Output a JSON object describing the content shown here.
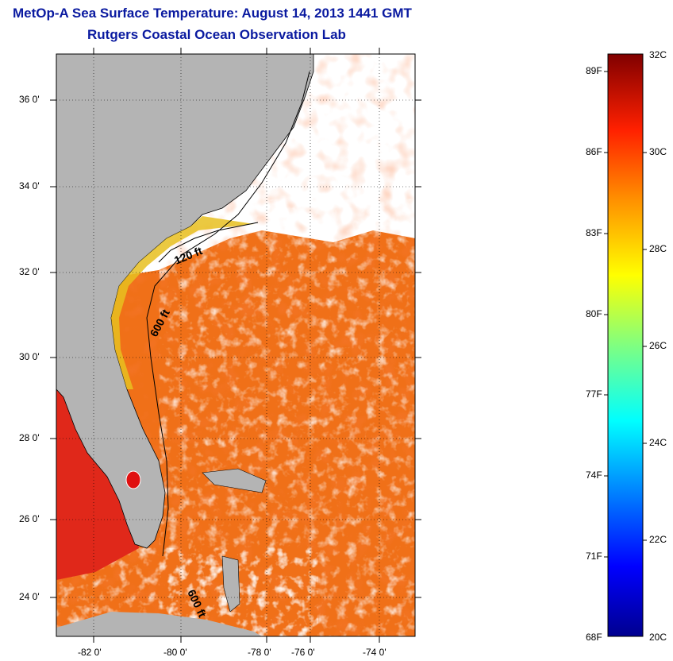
{
  "title_line1": "MetOp-A Sea Surface Temperature:  August 14, 2013 1441 GMT",
  "title_line2": "Rutgers Coastal Ocean Observation Lab",
  "lat_ticks": [
    "36 0'",
    "34 0'",
    "32 0'",
    "30 0'",
    "28 0'",
    "26 0'",
    "24 0'"
  ],
  "lon_ticks": [
    "-82 0'",
    "-80 0'",
    "-78 0'",
    "-76 0'",
    "-74 0'"
  ],
  "contour_labels": {
    "c120": "120 ft",
    "c600a": "600 ft",
    "c600b": "600 ft"
  },
  "colorbar": {
    "fahrenheit": [
      "89F",
      "86F",
      "83F",
      "80F",
      "77F",
      "74F",
      "71F",
      "68F"
    ],
    "celsius": [
      "32C",
      "30C",
      "28C",
      "26C",
      "24C",
      "22C",
      "20C"
    ]
  },
  "colors": {
    "title": "#0a1aa0",
    "land": "#b4b4b4",
    "warm": "#f06a10",
    "cloud": "#ffffff"
  }
}
